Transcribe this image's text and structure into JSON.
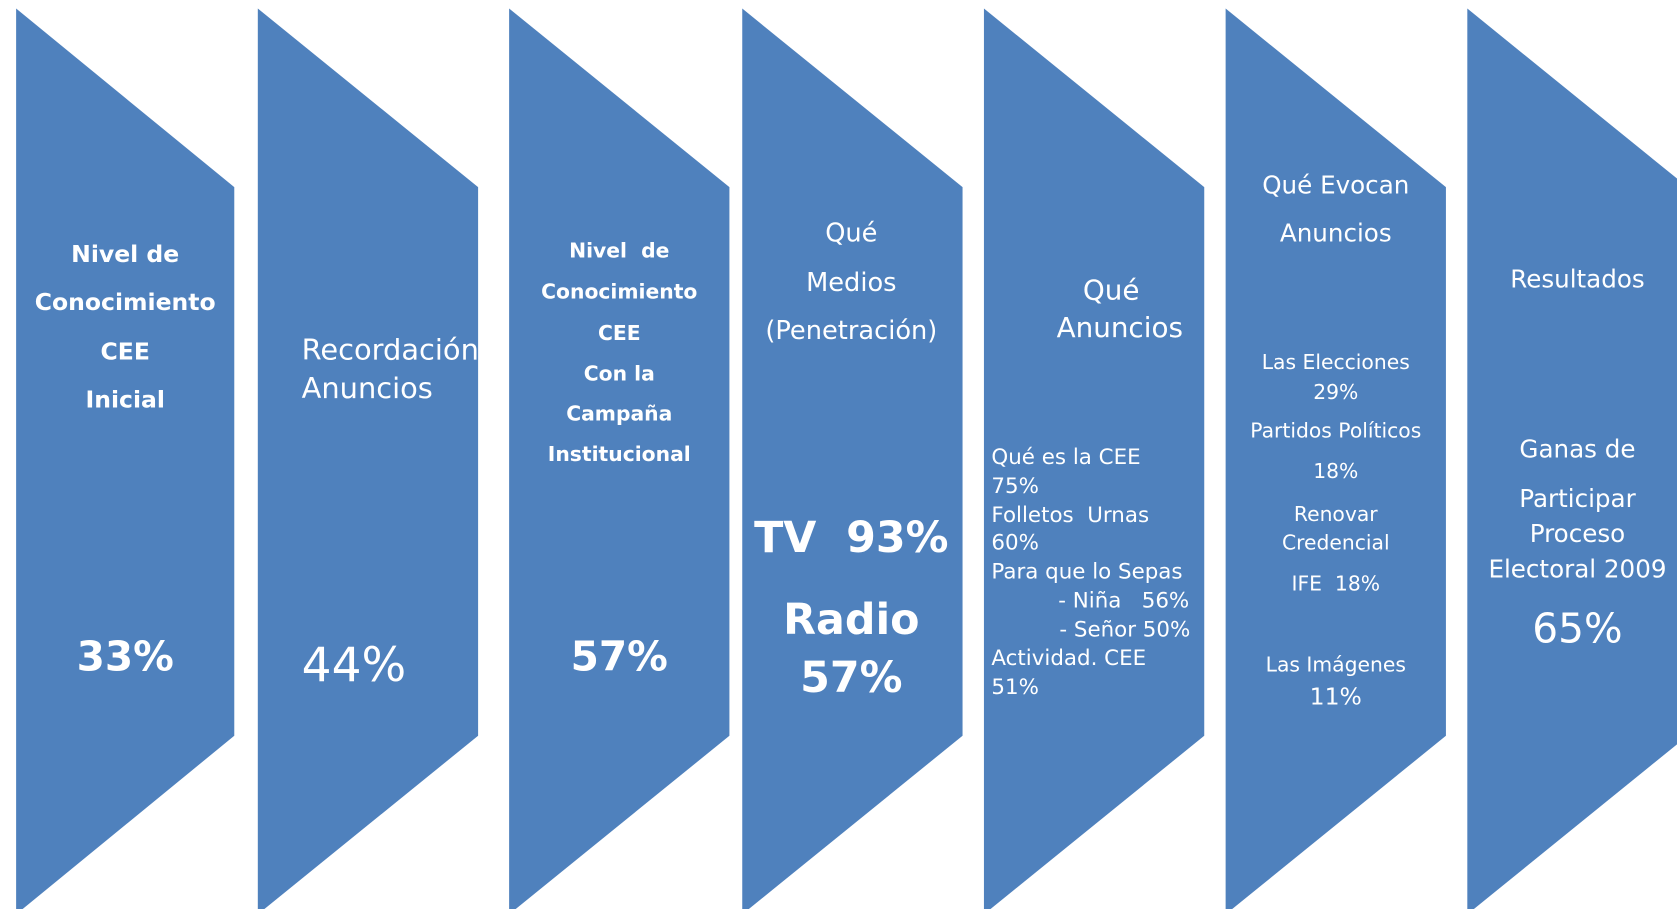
{
  "stages": [
    {
      "lines": [
        "Nivel de",
        "Conocimiento",
        "CEE",
        "Inicial",
        "33%"
      ]
    },
    {
      "lines": [
        "Recordación",
        "Anuncios",
        "44%"
      ]
    },
    {
      "lines": [
        "Nivel  de",
        "Conocimiento",
        "CEE",
        "Con la",
        "Campaña",
        "Institucional",
        "57%"
      ]
    },
    {
      "lines": [
        "Qué",
        "Medios",
        "(Penetración)",
        "TV  93%",
        "Radio",
        "57%"
      ]
    },
    {
      "lines": [
        "Qué",
        "Anuncios",
        "Qué es la CEE",
        "75%",
        "Folletos  Urnas",
        "60%",
        "Para que lo Sepas",
        "- Niña   56%",
        "- Señor 50%",
        "Actividad. CEE",
        "51%"
      ]
    },
    {
      "lines": [
        "Qué Evocan",
        "Anuncios",
        "Las Elecciones",
        "29%",
        "Partidos Políticos",
        "18%",
        "Renovar",
        "Credencial",
        "IFE  18%",
        "Las Imágenes",
        "11%"
      ]
    },
    {
      "lines": [
        "Resultados",
        "Ganas de",
        "Participar",
        "Proceso",
        "Electoral 2009",
        "65%"
      ]
    }
  ]
}
